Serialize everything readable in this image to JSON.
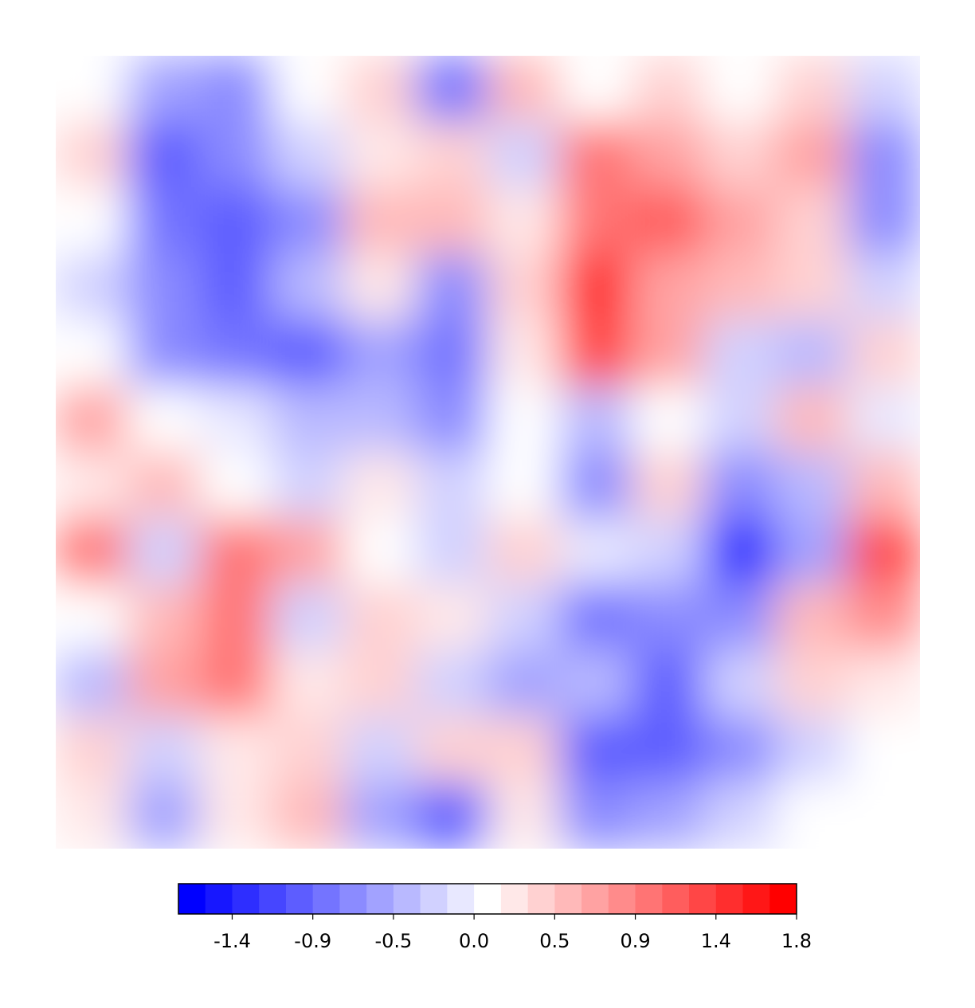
{
  "chart_data": {
    "type": "contourf",
    "cmap": "bwr",
    "z": [
      [
        0.1,
        -0.5,
        -0.7,
        0.1,
        0.3,
        -0.8,
        0.5,
        0.1,
        0.3,
        0.1,
        0.4,
        -0.2
      ],
      [
        0.3,
        -0.9,
        -0.6,
        -0.3,
        0.2,
        0.4,
        -0.2,
        0.9,
        0.6,
        0.3,
        0.6,
        -0.7
      ],
      [
        0,
        -0.8,
        -0.9,
        -0.7,
        0.5,
        0.5,
        0.2,
        1.0,
        1.1,
        0.6,
        0.4,
        -0.6
      ],
      [
        -0.2,
        -0.6,
        -1.0,
        -0.4,
        0.2,
        -0.6,
        0.3,
        1.4,
        0.6,
        0.5,
        0.3,
        -0.2
      ],
      [
        0.1,
        -0.7,
        -0.8,
        -1.0,
        -0.5,
        -0.8,
        0.2,
        1.2,
        0.6,
        -0.3,
        -0.4,
        0.3
      ],
      [
        0.6,
        0.1,
        -0.1,
        -0.4,
        -0.4,
        -0.6,
        0,
        -0.4,
        0.1,
        -0.2,
        0.5,
        -0.1
      ],
      [
        0.2,
        0.5,
        0.1,
        -0.2,
        0.2,
        -0.2,
        0.1,
        -0.6,
        0.3,
        -0.6,
        -0.4,
        0.5
      ],
      [
        0.9,
        -0.3,
        0.9,
        0.6,
        0.1,
        -0.3,
        0.3,
        -0.1,
        -0.3,
        -1.3,
        -0.5,
        1.2
      ],
      [
        0.1,
        0.5,
        0.9,
        -0.3,
        0.3,
        0.2,
        -0.2,
        -0.8,
        -0.7,
        -0.6,
        0.5,
        0.8
      ],
      [
        -0.4,
        0.6,
        1.0,
        0.2,
        0.4,
        -0.2,
        -0.5,
        -0.4,
        -0.9,
        -0.3,
        0.3,
        0.2
      ],
      [
        0.3,
        -0.2,
        0.2,
        0.4,
        -0.3,
        0.4,
        0.3,
        -0.9,
        -1.0,
        -0.6,
        -0.3,
        0.1
      ],
      [
        0.2,
        -0.5,
        0.2,
        0.5,
        -0.5,
        -0.9,
        0.2,
        -0.7,
        -0.5,
        -0.3,
        0,
        0.1
      ]
    ],
    "colorbar": {
      "lim": [
        -1.65,
        1.8
      ],
      "step": 0.15,
      "ticks": [
        {
          "value": -1.35,
          "label": "-1.4"
        },
        -0.9,
        {
          "value": -0.45,
          "label": "-0.5"
        },
        {
          "value": 0,
          "label": "0.0"
        },
        {
          "value": 0.45,
          "label": "0.5"
        },
        0.9,
        {
          "value": 1.35,
          "label": "1.4"
        },
        1.8
      ]
    }
  }
}
